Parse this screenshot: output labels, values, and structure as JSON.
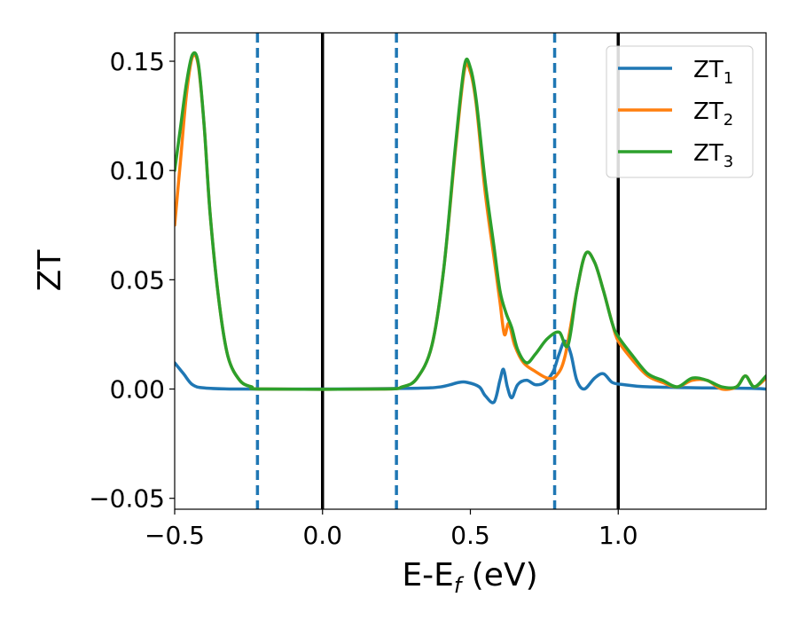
{
  "chart_data": {
    "type": "line",
    "xlabel": "E-E",
    "xlabel_sub": "f",
    "xlabel_tail": " (eV)",
    "ylabel": "ZT",
    "xlim": [
      -0.5,
      1.5
    ],
    "ylim": [
      -0.055,
      0.163
    ],
    "xticks": [
      {
        "value": -0.5,
        "label": "−0.5"
      },
      {
        "value": 0.0,
        "label": "0.0"
      },
      {
        "value": 0.5,
        "label": "0.5"
      },
      {
        "value": 1.0,
        "label": "1.0"
      }
    ],
    "yticks": [
      {
        "value": -0.05,
        "label": "−0.05"
      },
      {
        "value": 0.0,
        "label": "0.00"
      },
      {
        "value": 0.05,
        "label": "0.05"
      },
      {
        "value": 0.1,
        "label": "0.10"
      },
      {
        "value": 0.15,
        "label": "0.15"
      }
    ],
    "vlines_solid": [
      0.0,
      1.0
    ],
    "vlines_dashed": [
      -0.22,
      0.25,
      0.785
    ],
    "legend_position": "top-right",
    "grid": false,
    "series": [
      {
        "name": "ZT",
        "sub": "1",
        "color": "#1f77b4",
        "points": [
          [
            -0.5,
            0.012
          ],
          [
            -0.47,
            0.007
          ],
          [
            -0.44,
            0.002
          ],
          [
            -0.4,
            0.0005
          ],
          [
            -0.3,
            0.0
          ],
          [
            0.0,
            0.0
          ],
          [
            0.3,
            0.0003
          ],
          [
            0.4,
            0.001
          ],
          [
            0.46,
            0.003
          ],
          [
            0.49,
            0.003
          ],
          [
            0.53,
            0.001
          ],
          [
            0.55,
            -0.003
          ],
          [
            0.58,
            -0.006
          ],
          [
            0.6,
            0.004
          ],
          [
            0.612,
            0.009
          ],
          [
            0.625,
            0.001
          ],
          [
            0.64,
            -0.004
          ],
          [
            0.66,
            0.002
          ],
          [
            0.69,
            0.004
          ],
          [
            0.72,
            0.002
          ],
          [
            0.75,
            0.003
          ],
          [
            0.78,
            0.008
          ],
          [
            0.8,
            0.016
          ],
          [
            0.82,
            0.022
          ],
          [
            0.84,
            0.016
          ],
          [
            0.86,
            0.004
          ],
          [
            0.885,
            0.0
          ],
          [
            0.92,
            0.005
          ],
          [
            0.95,
            0.007
          ],
          [
            0.98,
            0.003
          ],
          [
            1.02,
            0.002
          ],
          [
            1.1,
            0.001
          ],
          [
            1.3,
            0.0005
          ],
          [
            1.45,
            0.0003
          ],
          [
            1.5,
            0.0
          ]
        ]
      },
      {
        "name": "ZT",
        "sub": "2",
        "color": "#ff7f0e",
        "points": [
          [
            -0.5,
            0.075
          ],
          [
            -0.48,
            0.105
          ],
          [
            -0.46,
            0.135
          ],
          [
            -0.44,
            0.152
          ],
          [
            -0.42,
            0.148
          ],
          [
            -0.4,
            0.12
          ],
          [
            -0.38,
            0.08
          ],
          [
            -0.35,
            0.04
          ],
          [
            -0.32,
            0.015
          ],
          [
            -0.28,
            0.004
          ],
          [
            -0.24,
            0.001
          ],
          [
            -0.2,
            0.0
          ],
          [
            0.2,
            0.0
          ],
          [
            0.27,
            0.001
          ],
          [
            0.32,
            0.005
          ],
          [
            0.37,
            0.02
          ],
          [
            0.41,
            0.055
          ],
          [
            0.45,
            0.11
          ],
          [
            0.48,
            0.146
          ],
          [
            0.5,
            0.145
          ],
          [
            0.52,
            0.13
          ],
          [
            0.55,
            0.09
          ],
          [
            0.58,
            0.06
          ],
          [
            0.6,
            0.04
          ],
          [
            0.615,
            0.025
          ],
          [
            0.63,
            0.03
          ],
          [
            0.65,
            0.02
          ],
          [
            0.68,
            0.012
          ],
          [
            0.72,
            0.008
          ],
          [
            0.76,
            0.005
          ],
          [
            0.79,
            0.006
          ],
          [
            0.82,
            0.015
          ],
          [
            0.86,
            0.045
          ],
          [
            0.89,
            0.062
          ],
          [
            0.92,
            0.058
          ],
          [
            0.95,
            0.045
          ],
          [
            0.98,
            0.03
          ],
          [
            1.0,
            0.022
          ],
          [
            1.05,
            0.013
          ],
          [
            1.1,
            0.006
          ],
          [
            1.15,
            0.003
          ],
          [
            1.2,
            0.001
          ],
          [
            1.25,
            0.004
          ],
          [
            1.3,
            0.004
          ],
          [
            1.35,
            0.0
          ],
          [
            1.4,
            0.001
          ],
          [
            1.43,
            0.006
          ],
          [
            1.46,
            0.001
          ],
          [
            1.5,
            0.005
          ]
        ]
      },
      {
        "name": "ZT",
        "sub": "3",
        "color": "#2ca02c",
        "points": [
          [
            -0.5,
            0.1
          ],
          [
            -0.48,
            0.12
          ],
          [
            -0.46,
            0.14
          ],
          [
            -0.44,
            0.153
          ],
          [
            -0.42,
            0.149
          ],
          [
            -0.4,
            0.12
          ],
          [
            -0.38,
            0.08
          ],
          [
            -0.35,
            0.04
          ],
          [
            -0.32,
            0.015
          ],
          [
            -0.28,
            0.004
          ],
          [
            -0.24,
            0.001
          ],
          [
            -0.2,
            0.0
          ],
          [
            0.2,
            0.0
          ],
          [
            0.27,
            0.001
          ],
          [
            0.32,
            0.005
          ],
          [
            0.37,
            0.02
          ],
          [
            0.41,
            0.055
          ],
          [
            0.45,
            0.112
          ],
          [
            0.48,
            0.148
          ],
          [
            0.5,
            0.147
          ],
          [
            0.52,
            0.132
          ],
          [
            0.55,
            0.095
          ],
          [
            0.58,
            0.065
          ],
          [
            0.6,
            0.045
          ],
          [
            0.62,
            0.035
          ],
          [
            0.64,
            0.028
          ],
          [
            0.66,
            0.018
          ],
          [
            0.69,
            0.012
          ],
          [
            0.72,
            0.016
          ],
          [
            0.76,
            0.023
          ],
          [
            0.8,
            0.026
          ],
          [
            0.83,
            0.02
          ],
          [
            0.86,
            0.045
          ],
          [
            0.89,
            0.062
          ],
          [
            0.92,
            0.058
          ],
          [
            0.95,
            0.045
          ],
          [
            0.98,
            0.03
          ],
          [
            1.0,
            0.024
          ],
          [
            1.05,
            0.015
          ],
          [
            1.1,
            0.007
          ],
          [
            1.15,
            0.004
          ],
          [
            1.2,
            0.001
          ],
          [
            1.25,
            0.005
          ],
          [
            1.3,
            0.004
          ],
          [
            1.35,
            0.001
          ],
          [
            1.4,
            0.001
          ],
          [
            1.43,
            0.006
          ],
          [
            1.46,
            0.001
          ],
          [
            1.5,
            0.006
          ]
        ]
      }
    ]
  }
}
